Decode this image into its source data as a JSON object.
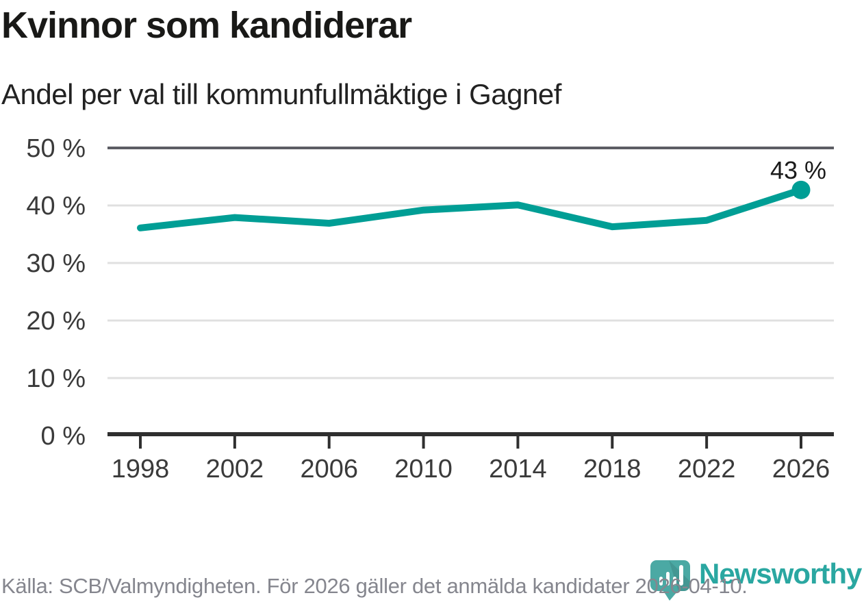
{
  "chart_data": {
    "type": "line",
    "title": "Kvinnor som kandiderar",
    "subtitle": "Andel per val till kommunfullmäktige i Gagnef",
    "categories": [
      "1998",
      "2002",
      "2006",
      "2010",
      "2014",
      "2018",
      "2022",
      "2026"
    ],
    "values": [
      36.1,
      37.9,
      36.9,
      39.2,
      40.1,
      36.3,
      37.4,
      42.7
    ],
    "end_point_label": "43 %",
    "ytick_labels": [
      "0 %",
      "10 %",
      "20 %",
      "30 %",
      "40 %",
      "50 %"
    ],
    "ylim": [
      0,
      50
    ],
    "ytick_step": 10,
    "grid": true,
    "legend": "none",
    "line_color": "#009E95",
    "marker_color": "#009E95",
    "axis_color": "#2f2f2f",
    "grid_color": "#e0e0e0",
    "top_grid_color": "#5c5d64",
    "tick_label_color": "#3a3a3a",
    "end_label_color": "#1a1a1a"
  },
  "footer": {
    "source": "Källa: SCB/Valmyndigheten. För 2026 gäller det anmälda kandidater 2026-04-10."
  },
  "logo": {
    "text": "Newsworthy",
    "text_color": "#2aa7a1",
    "mark_color": "#4BA9A4",
    "mark_icon": "newsworthy-pin-barchart"
  }
}
